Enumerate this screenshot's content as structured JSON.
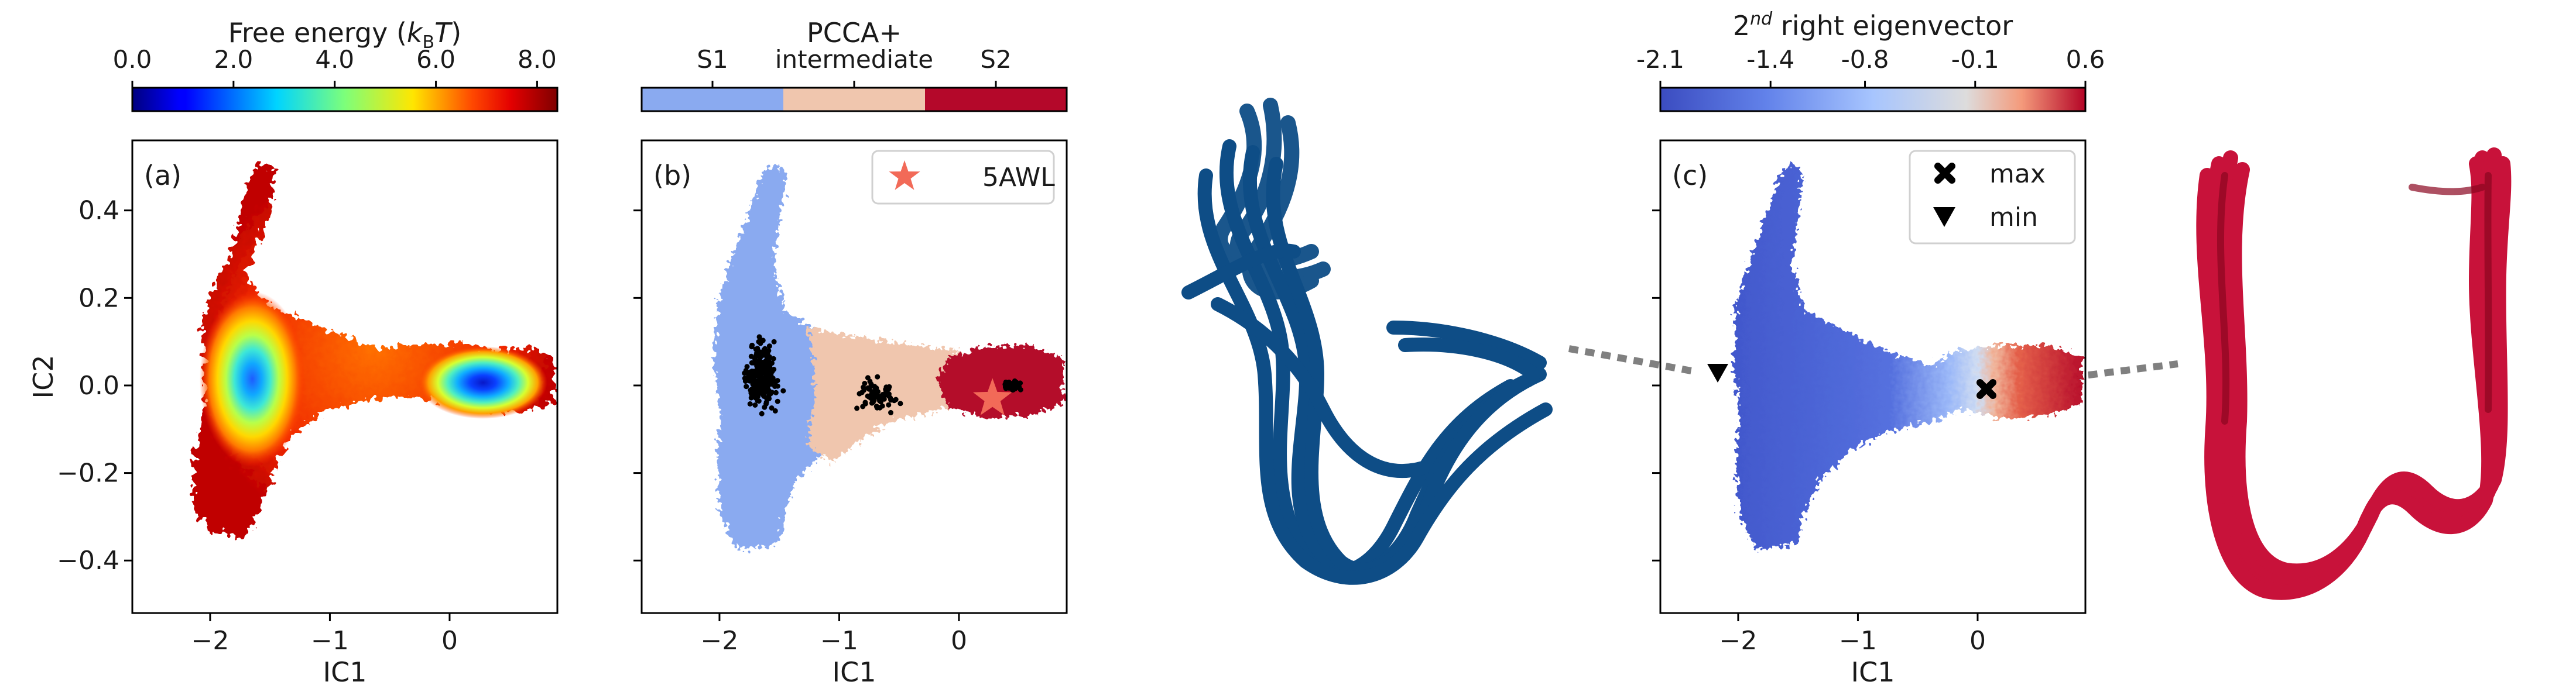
{
  "figure": {
    "colorbars": [
      {
        "id": "energy",
        "label_main": "Free energy (",
        "label_var": "k",
        "label_sub": "B",
        "label_var2": "T",
        "label_end": ")",
        "ticks": [
          "0.0",
          "2.0",
          "4.0",
          "6.0",
          "8.0"
        ],
        "tick_values": [
          0,
          2,
          4,
          6,
          8
        ],
        "range": [
          0,
          8.4
        ],
        "colormap": "jet"
      },
      {
        "id": "pcca",
        "label": "PCCA+",
        "ticks": [
          "S1",
          "intermediate",
          "S2"
        ],
        "colors": [
          "#8aaaf0",
          "#f0c6ae",
          "#b4082a"
        ]
      },
      {
        "id": "eigen",
        "label_pre": "2",
        "label_sup": "nd",
        "label_post": " right eigenvector",
        "ticks": [
          "-2.1",
          "-1.4",
          "-0.8",
          "-0.1",
          "0.6"
        ],
        "tick_values": [
          -2.1,
          -1.4,
          -0.8,
          -0.1,
          0.6
        ],
        "range": [
          -2.1,
          0.6
        ],
        "colormap": "coolwarm"
      }
    ],
    "panel_labels": [
      "(a)",
      "(b)",
      "(c)"
    ],
    "legend_b": {
      "label": "5AWL",
      "color": "#f26a58"
    },
    "legend_c": [
      {
        "label": "max",
        "marker": "x"
      },
      {
        "label": "min",
        "marker": "triangle-down"
      }
    ],
    "structure_colors": {
      "s1": "#0e4d86",
      "s2": "#c8123a"
    }
  },
  "chart_data": [
    {
      "type": "heatmap",
      "panel": "(a)",
      "xlabel": "IC1",
      "ylabel": "IC2",
      "xlim": [
        -2.65,
        0.9
      ],
      "ylim": [
        -0.52,
        0.56
      ],
      "xticks": [
        -2,
        -1,
        0
      ],
      "xtick_labels": [
        "−2",
        "−1",
        "0"
      ],
      "yticks": [
        -0.4,
        -0.2,
        0.0,
        0.2,
        0.4
      ],
      "ytick_labels": [
        "−0.4",
        "−0.2",
        "0.0",
        "0.2",
        "0.4"
      ],
      "colorbar": "Free energy (kBT)",
      "minima": [
        {
          "x": -1.65,
          "y": 0.02,
          "value": 0.0
        },
        {
          "x": 0.42,
          "y": 0.0,
          "value": 0.0
        }
      ]
    },
    {
      "type": "heatmap",
      "panel": "(b)",
      "xlabel": "IC1",
      "xlim": [
        -2.65,
        0.9
      ],
      "ylim": [
        -0.52,
        0.56
      ],
      "xticks": [
        -2,
        -1,
        0
      ],
      "xtick_labels": [
        "−2",
        "−1",
        "0"
      ],
      "yticks": [
        -0.4,
        -0.2,
        0.0,
        0.2,
        0.4
      ],
      "states": [
        "S1",
        "intermediate",
        "S2"
      ],
      "state_boundaries_x": [
        -0.9,
        -0.05
      ],
      "reference_point": {
        "label": "5AWL",
        "x": 0.28,
        "y": -0.03
      }
    },
    {
      "type": "heatmap",
      "panel": "(c)",
      "xlabel": "IC1",
      "xlim": [
        -2.65,
        0.9
      ],
      "ylim": [
        -0.52,
        0.56
      ],
      "xticks": [
        -2,
        -1,
        0
      ],
      "xtick_labels": [
        "−2",
        "−1",
        "0"
      ],
      "yticks": [
        -0.4,
        -0.2,
        0.0,
        0.2,
        0.4
      ],
      "colorbar": "2nd right eigenvector",
      "max_point": {
        "x": 0.1,
        "y": -0.02
      },
      "min_point": {
        "x": -2.25,
        "y": 0.03
      }
    }
  ]
}
